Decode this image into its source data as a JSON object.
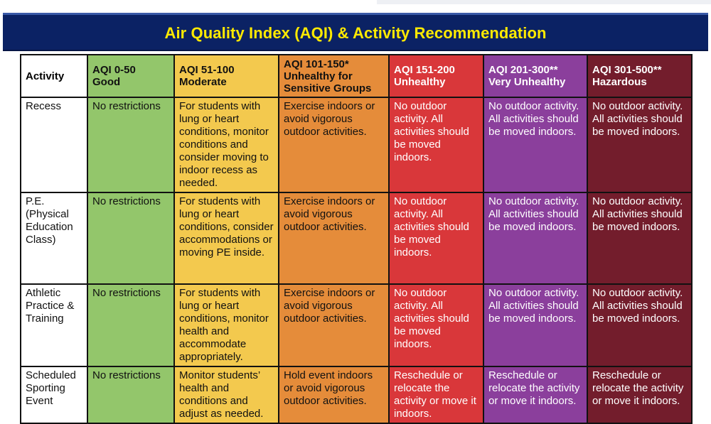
{
  "title": "Air Quality Index (AQI) & Activity Recommendation",
  "colors": {
    "title_bg": "#0b2264",
    "title_text": "#ffea00",
    "good": "#93c66b",
    "moderate": "#f3c94e",
    "usg": "#e58c3a",
    "unhealthy": "#d9373a",
    "very_unhealthy": "#8b3f9c",
    "hazardous": "#731d2c"
  },
  "table": {
    "headers": {
      "activity": "Activity",
      "good": "AQI 0-50\nGood",
      "moderate": "AQI 51-100\nModerate",
      "usg": "AQI 101-150*\nUnhealthy for\nSensitive Groups",
      "unhealthy": "AQI 151-200\nUnhealthy",
      "very_unhealthy": "AQI 201-300**\nVery Unhealthy",
      "hazardous": "AQI 301-500**\nHazardous"
    },
    "rows": [
      {
        "activity": "Recess",
        "good": "No restrictions",
        "moderate": "For students with lung or heart conditions, monitor conditions and consider moving to indoor recess as needed.",
        "usg": "Exercise indoors or avoid vigorous outdoor activities.",
        "unhealthy": "No outdoor activity. All activities should be moved indoors.",
        "very_unhealthy": "No outdoor activity. All activities should be moved indoors.",
        "hazardous": "No outdoor activity. All activities should be moved indoors."
      },
      {
        "activity": "P.E. (Physical Education Class)",
        "good": "No restrictions",
        "moderate": "For students with lung or heart conditions, consider accommodations or moving PE inside.",
        "usg": "Exercise indoors or avoid vigorous outdoor activities.",
        "unhealthy": "No outdoor activity. All activities should be moved indoors.",
        "very_unhealthy": "No outdoor activity. All activities should be moved indoors.",
        "hazardous": "No outdoor activity. All activities should be moved indoors."
      },
      {
        "activity": "Athletic Practice & Training",
        "good": "No restrictions",
        "moderate": "For students with lung or heart conditions, monitor health and accommodate appropriately.",
        "usg": "Exercise indoors or avoid vigorous outdoor activities.",
        "unhealthy": "No outdoor activity. All activities should be moved indoors.",
        "very_unhealthy": "No outdoor activity. All activities should be moved indoors.",
        "hazardous": "No outdoor activity. All activities should be moved indoors."
      },
      {
        "activity": "Scheduled Sporting Event",
        "good": "No restrictions",
        "moderate": "Monitor students’ health and conditions and adjust as needed.",
        "usg": "Hold event indoors or avoid vigorous outdoor activities.",
        "unhealthy": "Reschedule or relocate the activity or move it indoors.",
        "very_unhealthy": "Reschedule or relocate the activity or move it indoors.",
        "hazardous": "Reschedule or relocate the activity or move it indoors."
      }
    ]
  }
}
